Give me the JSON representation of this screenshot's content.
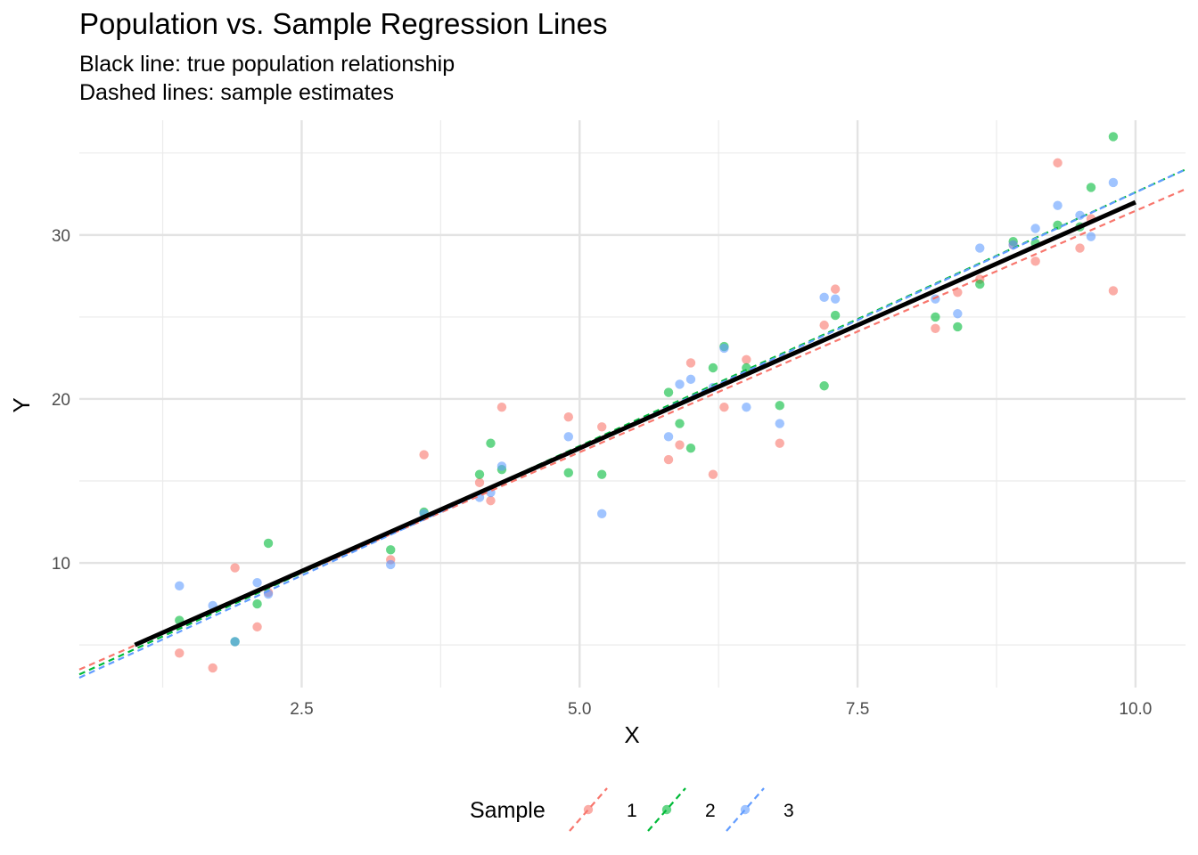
{
  "chart_data": {
    "type": "scatter",
    "title": "Population vs. Sample Regression Lines",
    "subtitle_lines": [
      "Black line: true population relationship",
      "Dashed lines: sample estimates"
    ],
    "xlabel": "X",
    "ylabel": "Y",
    "xlim": [
      0.5,
      10.45
    ],
    "ylim": [
      2.4,
      37
    ],
    "x_ticks": [
      2.5,
      5.0,
      7.5,
      10.0
    ],
    "x_tick_labels": [
      "2.5",
      "5.0",
      "7.5",
      "10.0"
    ],
    "y_ticks": [
      10,
      20,
      30
    ],
    "y_tick_labels": [
      "10",
      "20",
      "30"
    ],
    "grid": true,
    "legend": {
      "title": "Sample",
      "position": "bottom"
    },
    "population_line": {
      "x": [
        1.0,
        10.0
      ],
      "y": [
        5.0,
        32.0
      ],
      "color": "#000000"
    },
    "series": [
      {
        "name": "1",
        "color": "#F8766D",
        "line": {
          "x": [
            0.5,
            10.45
          ],
          "y": [
            3.5,
            32.8
          ]
        },
        "points": [
          [
            1.4,
            4.5
          ],
          [
            1.7,
            3.6
          ],
          [
            1.9,
            9.7
          ],
          [
            2.1,
            6.1
          ],
          [
            2.2,
            8.2
          ],
          [
            3.3,
            10.2
          ],
          [
            3.6,
            16.6
          ],
          [
            4.1,
            14.9
          ],
          [
            4.2,
            13.8
          ],
          [
            4.3,
            19.5
          ],
          [
            4.9,
            18.9
          ],
          [
            5.2,
            18.3
          ],
          [
            5.8,
            16.3
          ],
          [
            5.9,
            17.2
          ],
          [
            6.0,
            22.2
          ],
          [
            6.2,
            15.4
          ],
          [
            6.3,
            19.5
          ],
          [
            6.5,
            22.4
          ],
          [
            6.8,
            17.3
          ],
          [
            7.2,
            24.5
          ],
          [
            7.3,
            26.7
          ],
          [
            8.2,
            24.3
          ],
          [
            8.4,
            26.5
          ],
          [
            8.6,
            27.3
          ],
          [
            8.9,
            29.4
          ],
          [
            9.1,
            28.4
          ],
          [
            9.3,
            34.4
          ],
          [
            9.5,
            29.2
          ],
          [
            9.6,
            31.0
          ],
          [
            9.8,
            26.6
          ]
        ]
      },
      {
        "name": "2",
        "color": "#00BA38",
        "line": {
          "x": [
            0.5,
            10.45
          ],
          "y": [
            3.2,
            34.0
          ]
        },
        "points": [
          [
            1.4,
            6.5
          ],
          [
            1.9,
            5.2
          ],
          [
            2.1,
            7.5
          ],
          [
            2.2,
            11.2
          ],
          [
            3.3,
            10.8
          ],
          [
            3.6,
            13.1
          ],
          [
            4.1,
            15.4
          ],
          [
            4.2,
            17.3
          ],
          [
            4.3,
            15.7
          ],
          [
            4.9,
            15.5
          ],
          [
            5.2,
            15.4
          ],
          [
            5.8,
            20.4
          ],
          [
            5.9,
            18.5
          ],
          [
            6.0,
            17.0
          ],
          [
            6.2,
            21.9
          ],
          [
            6.3,
            23.2
          ],
          [
            6.5,
            21.9
          ],
          [
            6.8,
            19.6
          ],
          [
            7.2,
            20.8
          ],
          [
            7.3,
            25.1
          ],
          [
            8.2,
            25.0
          ],
          [
            8.4,
            24.4
          ],
          [
            8.6,
            27.0
          ],
          [
            8.9,
            29.6
          ],
          [
            9.1,
            29.5
          ],
          [
            9.3,
            30.6
          ],
          [
            9.5,
            30.5
          ],
          [
            9.6,
            32.9
          ],
          [
            9.8,
            36.0
          ]
        ]
      },
      {
        "name": "3",
        "color": "#619CFF",
        "line": {
          "x": [
            0.5,
            10.45
          ],
          "y": [
            3.0,
            34.0
          ]
        },
        "points": [
          [
            1.4,
            8.6
          ],
          [
            1.7,
            7.4
          ],
          [
            1.9,
            5.2
          ],
          [
            2.1,
            8.8
          ],
          [
            2.2,
            8.1
          ],
          [
            3.3,
            9.9
          ],
          [
            3.6,
            13.0
          ],
          [
            4.1,
            14.0
          ],
          [
            4.2,
            14.3
          ],
          [
            4.3,
            15.9
          ],
          [
            4.9,
            17.7
          ],
          [
            5.2,
            13.0
          ],
          [
            5.8,
            17.7
          ],
          [
            5.9,
            20.9
          ],
          [
            6.0,
            21.2
          ],
          [
            6.2,
            20.7
          ],
          [
            6.3,
            23.1
          ],
          [
            6.5,
            19.5
          ],
          [
            6.8,
            18.5
          ],
          [
            7.2,
            26.2
          ],
          [
            7.3,
            26.1
          ],
          [
            8.2,
            26.1
          ],
          [
            8.4,
            25.2
          ],
          [
            8.6,
            29.2
          ],
          [
            8.9,
            29.4
          ],
          [
            9.1,
            30.4
          ],
          [
            9.3,
            31.8
          ],
          [
            9.5,
            31.2
          ],
          [
            9.6,
            29.9
          ],
          [
            9.8,
            33.2
          ]
        ]
      }
    ]
  }
}
